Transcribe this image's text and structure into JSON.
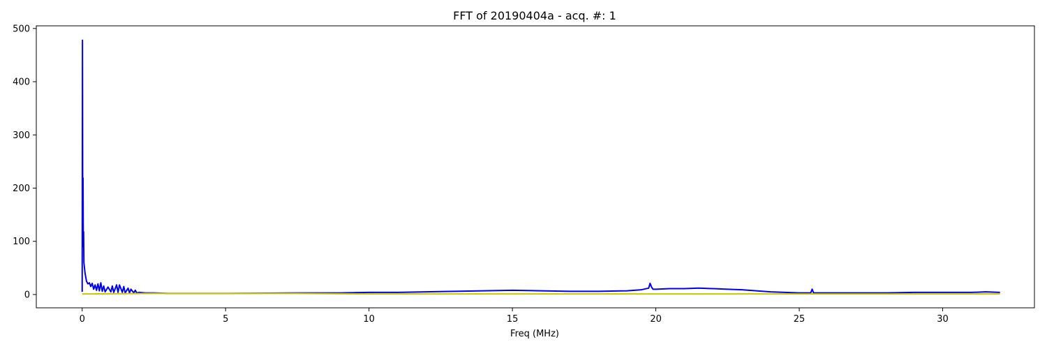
{
  "chart_data": {
    "type": "line",
    "title": "FFT of 20190404a - acq. #: 1",
    "xlabel": "Freq (MHz)",
    "ylabel": "",
    "xlim": [
      -1.6,
      33.2
    ],
    "ylim": [
      -25,
      505
    ],
    "x_ticks": [
      0,
      5,
      10,
      15,
      20,
      25,
      30
    ],
    "x_tick_labels": [
      "0",
      "5",
      "10",
      "15",
      "20",
      "25",
      "30"
    ],
    "y_ticks": [
      0,
      100,
      200,
      300,
      400,
      500
    ],
    "y_tick_labels": [
      "0",
      "100",
      "200",
      "300",
      "400",
      "500"
    ],
    "grid": false,
    "colors": {
      "blue_series": "#0000ee",
      "yellow_series": "#c8c800"
    },
    "series": [
      {
        "color": "blue",
        "x": [
          0,
          0.01,
          0.02,
          0.03,
          0.04,
          0.05,
          0.06,
          0.08,
          0.1,
          0.15,
          0.2,
          0.25,
          0.3,
          0.35,
          0.4,
          0.45,
          0.5,
          0.55,
          0.6,
          0.65,
          0.7,
          0.75,
          0.8,
          0.9,
          1.0,
          1.05,
          1.1,
          1.2,
          1.25,
          1.3,
          1.4,
          1.45,
          1.5,
          1.6,
          1.65,
          1.7,
          1.8,
          1.85,
          1.9,
          2.0,
          2.2,
          2.5,
          3.0,
          5.0,
          7.5,
          8.0,
          9.0,
          10.0,
          11.0,
          12.0,
          13.0,
          14.0,
          15.0,
          16.0,
          17.0,
          18.0,
          19.0,
          19.5,
          19.75,
          19.8,
          19.85,
          19.9,
          20.0,
          20.5,
          21.0,
          21.5,
          22.0,
          22.5,
          23.0,
          23.5,
          24.0,
          24.5,
          25.0,
          25.4,
          25.45,
          25.5,
          25.6,
          26.0,
          27.0,
          28.0,
          29.0,
          30.0,
          31.0,
          31.5,
          32.0
        ],
        "y": [
          5,
          478,
          120,
          219,
          90,
          118,
          60,
          50,
          40,
          25,
          20,
          22,
          15,
          21,
          10,
          18,
          8,
          20,
          7,
          22,
          6,
          16,
          5,
          14,
          5,
          16,
          4,
          18,
          4,
          18,
          4,
          15,
          3,
          12,
          3,
          10,
          3,
          8,
          3,
          4,
          3,
          3,
          2,
          2,
          3,
          3,
          3,
          4,
          4,
          5,
          6,
          7,
          8,
          7,
          6,
          6,
          7,
          9,
          12,
          21,
          14,
          10,
          10,
          11,
          11,
          12,
          11,
          10,
          9,
          7,
          5,
          4,
          3,
          3,
          10,
          3,
          3,
          3,
          3,
          3,
          4,
          4,
          4,
          5,
          4
        ]
      },
      {
        "color": "yellow",
        "x": [
          0,
          2.5,
          5.0,
          7.5,
          10.0,
          15.0,
          20.0,
          25.0,
          30.0,
          32.0
        ],
        "y": [
          1,
          2,
          2,
          2,
          1,
          1,
          1,
          1,
          1,
          1
        ]
      }
    ]
  }
}
